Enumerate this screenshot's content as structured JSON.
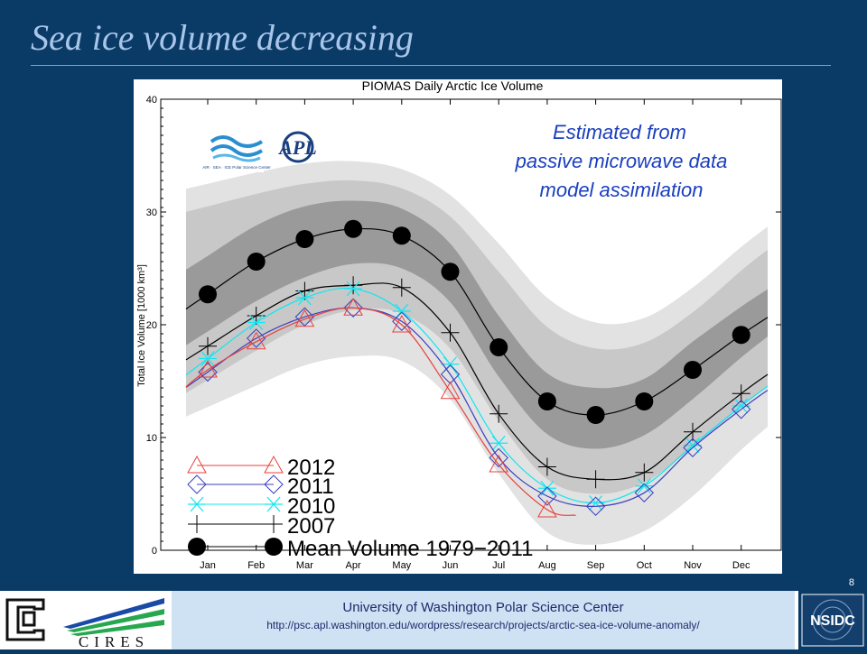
{
  "slide": {
    "title": "Sea ice volume decreasing",
    "slide_number": "8",
    "footer_line1": "University of Washington Polar Science Center",
    "footer_line2": "http://psc.apl.washington.edu/wordpress/research/projects/arctic-sea-ice-volume-anomaly/",
    "logos": [
      "cu-logo",
      "cires-logo",
      "nsidc-logo"
    ],
    "logo_text": {
      "cires": "CIRES",
      "nsidc": "NSIDC",
      "psc": "AIR · SEA · ICE  Polar Science Center"
    }
  },
  "colors": {
    "background": "#0a3a66",
    "title": "#a9c6ea",
    "annotation": "#1a3fbf",
    "series_2012": "#e8413c",
    "series_2011": "#3b3fbf",
    "series_2010": "#14e6f0",
    "series_2007": "#000000",
    "mean": "#000000",
    "band_outer": "#e2e2e2",
    "band_mid": "#c8c8c8",
    "band_inner": "#9a9a9a"
  },
  "chart_data": {
    "type": "line",
    "title": "PIOMAS Daily Arctic Ice Volume",
    "ylabel": "Total Ice Volume [1000 km³]",
    "xlabel": "",
    "ylim": [
      0,
      40
    ],
    "yticks": [
      0,
      10,
      20,
      30,
      40
    ],
    "categories": [
      "Jan",
      "Feb",
      "Mar",
      "Apr",
      "May",
      "Jun",
      "Jul",
      "Aug",
      "Sep",
      "Oct",
      "Nov",
      "Dec"
    ],
    "annotation": [
      "Estimated from",
      "passive microwave data",
      "model assimilation"
    ],
    "bands": [
      {
        "level": "outer",
        "lower": [
          12.7,
          14.6,
          16.4,
          17.2,
          16.8,
          13.4,
          6.8,
          1.6,
          0.5,
          1.7,
          4.8,
          8.9
        ],
        "upper": [
          32.5,
          33.5,
          34.3,
          34.5,
          33.8,
          31.5,
          27.2,
          22.4,
          20.2,
          20.6,
          23.3,
          26.9
        ]
      },
      {
        "level": "mid",
        "lower": [
          15.1,
          17.7,
          20.0,
          21.3,
          21.0,
          17.9,
          11.5,
          6.3,
          5.0,
          6.0,
          9.1,
          12.7
        ],
        "upper": [
          30.5,
          31.6,
          32.5,
          32.8,
          32.1,
          29.6,
          24.7,
          19.8,
          17.9,
          18.4,
          21.1,
          24.8
        ]
      },
      {
        "level": "inner",
        "lower": [
          19.4,
          22.1,
          24.2,
          25.4,
          25.0,
          22.0,
          15.4,
          10.3,
          9.0,
          10.2,
          13.4,
          17.1
        ],
        "upper": [
          26.1,
          28.8,
          30.5,
          31.0,
          30.3,
          27.2,
          20.8,
          15.7,
          14.4,
          15.2,
          18.5,
          21.6
        ]
      }
    ],
    "series": [
      {
        "name": "2012",
        "marker": "triangle",
        "values": [
          16.0,
          18.5,
          20.5,
          21.5,
          20.0,
          14.1,
          7.6,
          3.6,
          null,
          null,
          null,
          null
        ]
      },
      {
        "name": "2011",
        "marker": "diamond",
        "values": [
          15.8,
          18.8,
          20.7,
          21.5,
          20.3,
          15.6,
          8.2,
          4.8,
          3.9,
          5.1,
          9.1,
          12.5
        ]
      },
      {
        "name": "2010",
        "marker": "asterisk",
        "values": [
          17.0,
          20.2,
          22.4,
          23.2,
          21.2,
          16.5,
          9.5,
          5.5,
          4.2,
          5.7,
          9.3,
          12.8
        ]
      },
      {
        "name": "2007",
        "marker": "plus",
        "values": [
          18.1,
          20.8,
          23.0,
          23.5,
          23.3,
          19.3,
          12.1,
          7.4,
          6.3,
          6.9,
          10.5,
          13.9
        ]
      },
      {
        "name": "Mean Volume 1979−2011",
        "marker": "dot",
        "values": [
          22.7,
          25.6,
          27.6,
          28.5,
          27.9,
          24.7,
          18.0,
          13.2,
          12.0,
          13.2,
          16.0,
          19.1
        ]
      }
    ]
  }
}
